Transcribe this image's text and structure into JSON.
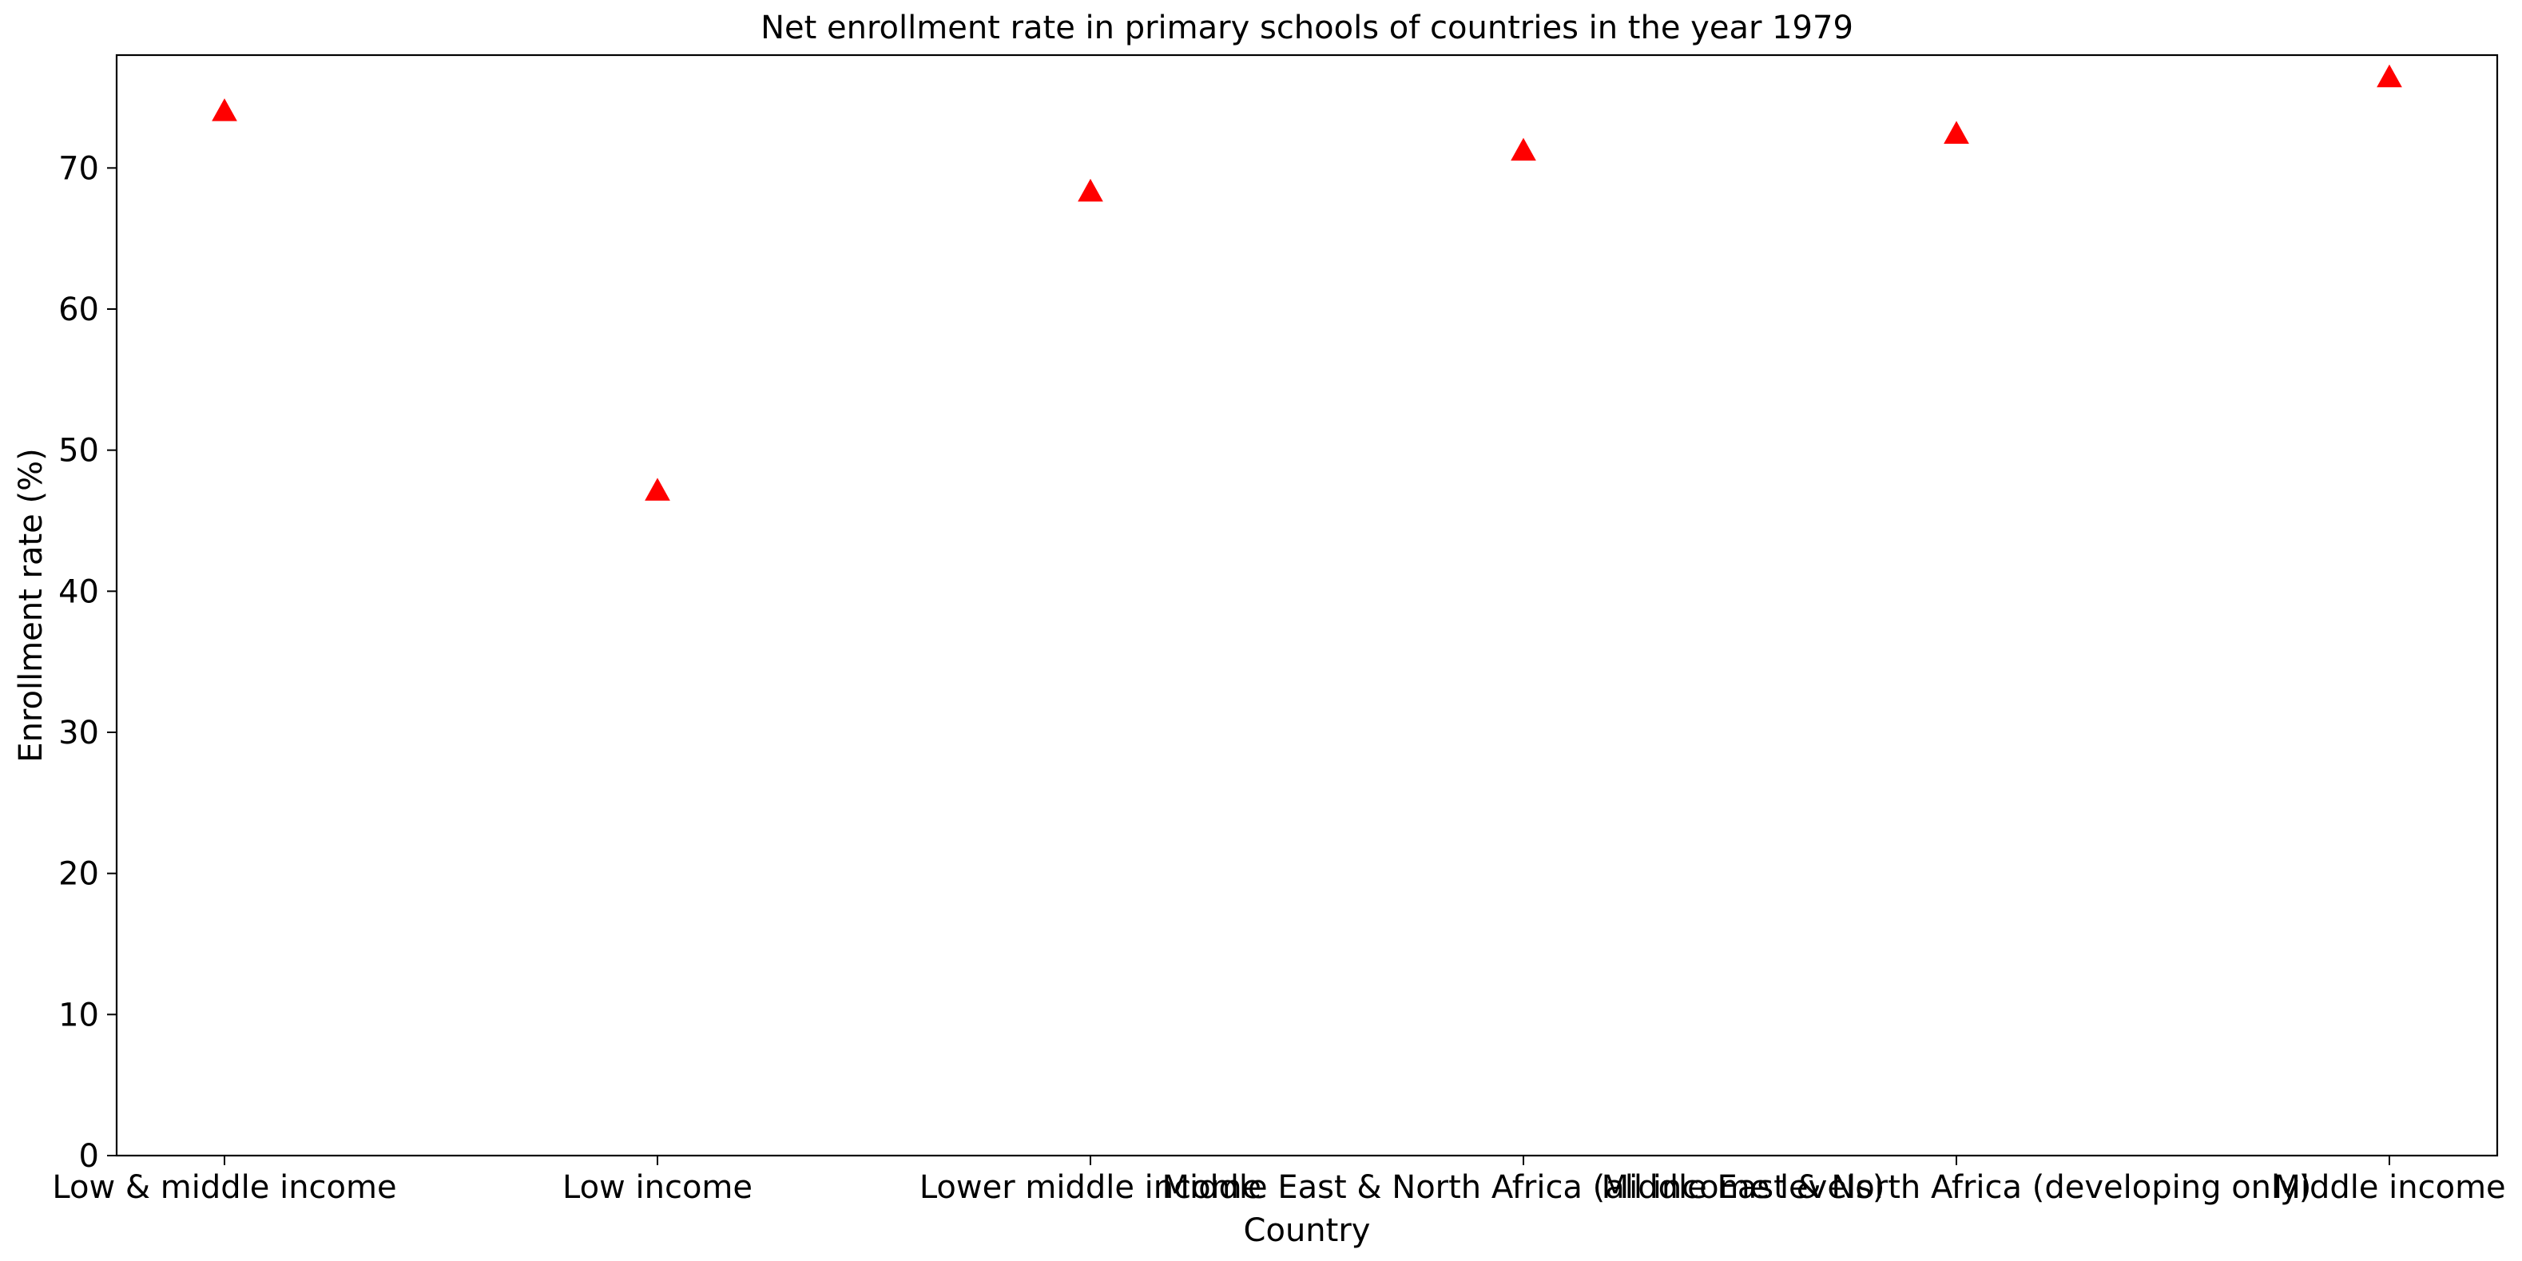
{
  "chart_data": {
    "type": "scatter",
    "title": "Net enrollment rate in primary schools of countries in the year 1979",
    "xlabel": "Country",
    "ylabel": "Enrollment rate (%)",
    "categories": [
      "Low & middle income",
      "Low income",
      "Lower middle income",
      "Middle East & North Africa (all income levels)",
      "Middle East & North Africa (developing only)",
      "Middle income"
    ],
    "values": [
      73.9,
      47.0,
      68.2,
      71.1,
      72.3,
      76.3
    ],
    "ylim": [
      0,
      78
    ],
    "yticks": [
      0,
      10,
      20,
      30,
      40,
      50,
      60,
      70
    ],
    "marker": "triangle-up",
    "marker_color": "#ff0000",
    "grid": false,
    "legend": "none"
  }
}
